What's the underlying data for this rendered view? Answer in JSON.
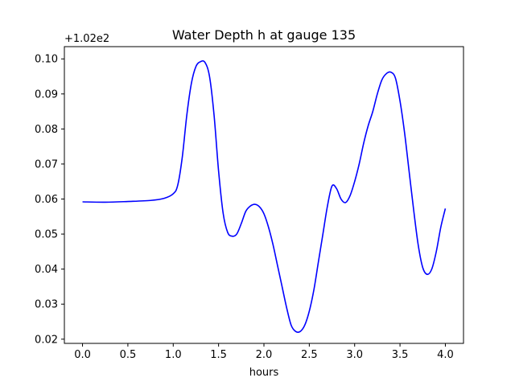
{
  "chart_data": {
    "type": "line",
    "title": "Water Depth h at gauge 135",
    "xlabel": "hours",
    "ylabel": "",
    "offset_label": "+1.02e2",
    "xlim": [
      -0.2,
      4.2
    ],
    "ylim": [
      0.0188,
      0.1035
    ],
    "x_ticks": [
      0.0,
      0.5,
      1.0,
      1.5,
      2.0,
      2.5,
      3.0,
      3.5,
      4.0
    ],
    "x_tick_labels": [
      "0.0",
      "0.5",
      "1.0",
      "1.5",
      "2.0",
      "2.5",
      "3.0",
      "3.5",
      "4.0"
    ],
    "y_ticks": [
      0.02,
      0.03,
      0.04,
      0.05,
      0.06,
      0.07,
      0.08,
      0.09,
      0.1
    ],
    "y_tick_labels": [
      "0.02",
      "0.03",
      "0.04",
      "0.05",
      "0.06",
      "0.07",
      "0.08",
      "0.09",
      "0.10"
    ],
    "grid": false,
    "series": [
      {
        "color": "#0000ff",
        "points": [
          [
            0.0,
            0.0592
          ],
          [
            0.25,
            0.0591
          ],
          [
            0.5,
            0.0593
          ],
          [
            0.75,
            0.0596
          ],
          [
            0.9,
            0.0602
          ],
          [
            1.0,
            0.0615
          ],
          [
            1.05,
            0.064
          ],
          [
            1.1,
            0.072
          ],
          [
            1.15,
            0.084
          ],
          [
            1.2,
            0.093
          ],
          [
            1.25,
            0.0978
          ],
          [
            1.3,
            0.0992
          ],
          [
            1.35,
            0.099
          ],
          [
            1.4,
            0.095
          ],
          [
            1.45,
            0.084
          ],
          [
            1.5,
            0.068
          ],
          [
            1.55,
            0.056
          ],
          [
            1.6,
            0.0505
          ],
          [
            1.65,
            0.0494
          ],
          [
            1.7,
            0.05
          ],
          [
            1.75,
            0.053
          ],
          [
            1.8,
            0.0565
          ],
          [
            1.85,
            0.058
          ],
          [
            1.9,
            0.0585
          ],
          [
            1.95,
            0.0578
          ],
          [
            2.0,
            0.0558
          ],
          [
            2.05,
            0.052
          ],
          [
            2.1,
            0.047
          ],
          [
            2.15,
            0.041
          ],
          [
            2.2,
            0.035
          ],
          [
            2.25,
            0.029
          ],
          [
            2.3,
            0.024
          ],
          [
            2.35,
            0.0222
          ],
          [
            2.4,
            0.0222
          ],
          [
            2.45,
            0.024
          ],
          [
            2.5,
            0.028
          ],
          [
            2.55,
            0.034
          ],
          [
            2.6,
            0.042
          ],
          [
            2.65,
            0.05
          ],
          [
            2.7,
            0.058
          ],
          [
            2.75,
            0.0637
          ],
          [
            2.8,
            0.063
          ],
          [
            2.85,
            0.06
          ],
          [
            2.9,
            0.059
          ],
          [
            2.95,
            0.061
          ],
          [
            3.0,
            0.065
          ],
          [
            3.05,
            0.07
          ],
          [
            3.1,
            0.076
          ],
          [
            3.15,
            0.081
          ],
          [
            3.2,
            0.085
          ],
          [
            3.25,
            0.09
          ],
          [
            3.3,
            0.094
          ],
          [
            3.35,
            0.0958
          ],
          [
            3.4,
            0.0962
          ],
          [
            3.45,
            0.0945
          ],
          [
            3.5,
            0.088
          ],
          [
            3.55,
            0.079
          ],
          [
            3.6,
            0.068
          ],
          [
            3.65,
            0.057
          ],
          [
            3.7,
            0.047
          ],
          [
            3.75,
            0.0405
          ],
          [
            3.8,
            0.0385
          ],
          [
            3.85,
            0.04
          ],
          [
            3.9,
            0.045
          ],
          [
            3.95,
            0.052
          ],
          [
            4.0,
            0.0573
          ]
        ]
      }
    ]
  }
}
